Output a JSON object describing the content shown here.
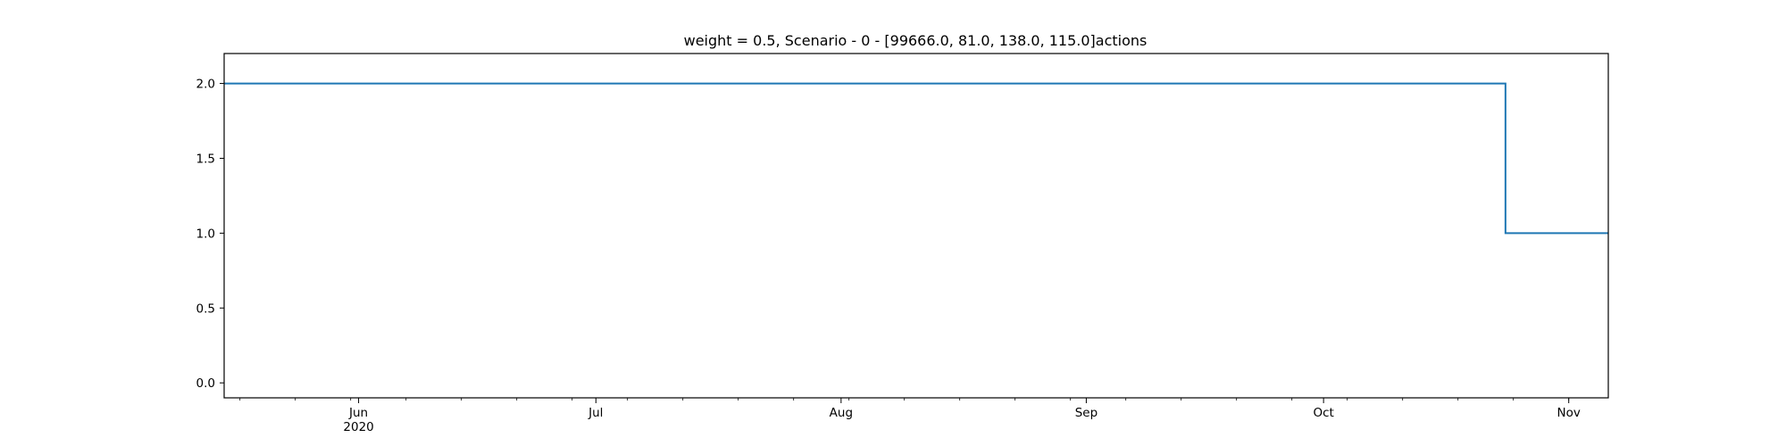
{
  "chart_data": {
    "type": "line",
    "title": "weight = 0.5, Scenario - 0 - [99666.0, 81.0, 138.0, 115.0]actions",
    "xlabel": "",
    "ylabel": "",
    "x_axis": {
      "type": "date",
      "range": [
        "2020-05-15",
        "2020-11-06"
      ],
      "major_ticks": [
        {
          "date": "2020-06-01",
          "label": "Jun",
          "sublabel": "2020"
        },
        {
          "date": "2020-07-01",
          "label": "Jul",
          "sublabel": ""
        },
        {
          "date": "2020-08-01",
          "label": "Aug",
          "sublabel": ""
        },
        {
          "date": "2020-09-01",
          "label": "Sep",
          "sublabel": ""
        },
        {
          "date": "2020-10-01",
          "label": "Oct",
          "sublabel": ""
        },
        {
          "date": "2020-11-01",
          "label": "Nov",
          "sublabel": ""
        }
      ],
      "minor_ticks": [
        "2020-05-17",
        "2020-05-24",
        "2020-05-31",
        "2020-06-07",
        "2020-06-14",
        "2020-06-21",
        "2020-06-28",
        "2020-07-05",
        "2020-07-12",
        "2020-07-19",
        "2020-07-26",
        "2020-08-02",
        "2020-08-09",
        "2020-08-16",
        "2020-08-23",
        "2020-08-30",
        "2020-09-06",
        "2020-09-13",
        "2020-09-20",
        "2020-09-27",
        "2020-10-04",
        "2020-10-11",
        "2020-10-18",
        "2020-10-25",
        "2020-11-01"
      ]
    },
    "y_axis": {
      "range": [
        -0.1,
        2.2
      ],
      "ticks": [
        {
          "value": 0.0,
          "label": "0.0"
        },
        {
          "value": 0.5,
          "label": "0.5"
        },
        {
          "value": 1.0,
          "label": "1.0"
        },
        {
          "value": 1.5,
          "label": "1.5"
        },
        {
          "value": 2.0,
          "label": "2.0"
        }
      ]
    },
    "grid": false,
    "series": [
      {
        "color": "#1f77b4",
        "step": true,
        "points": [
          {
            "x": "2020-05-15",
            "y": 2.0
          },
          {
            "x": "2020-10-24",
            "y": 2.0
          },
          {
            "x": "2020-10-24",
            "y": 1.0
          },
          {
            "x": "2020-11-06",
            "y": 1.0
          }
        ]
      }
    ]
  }
}
